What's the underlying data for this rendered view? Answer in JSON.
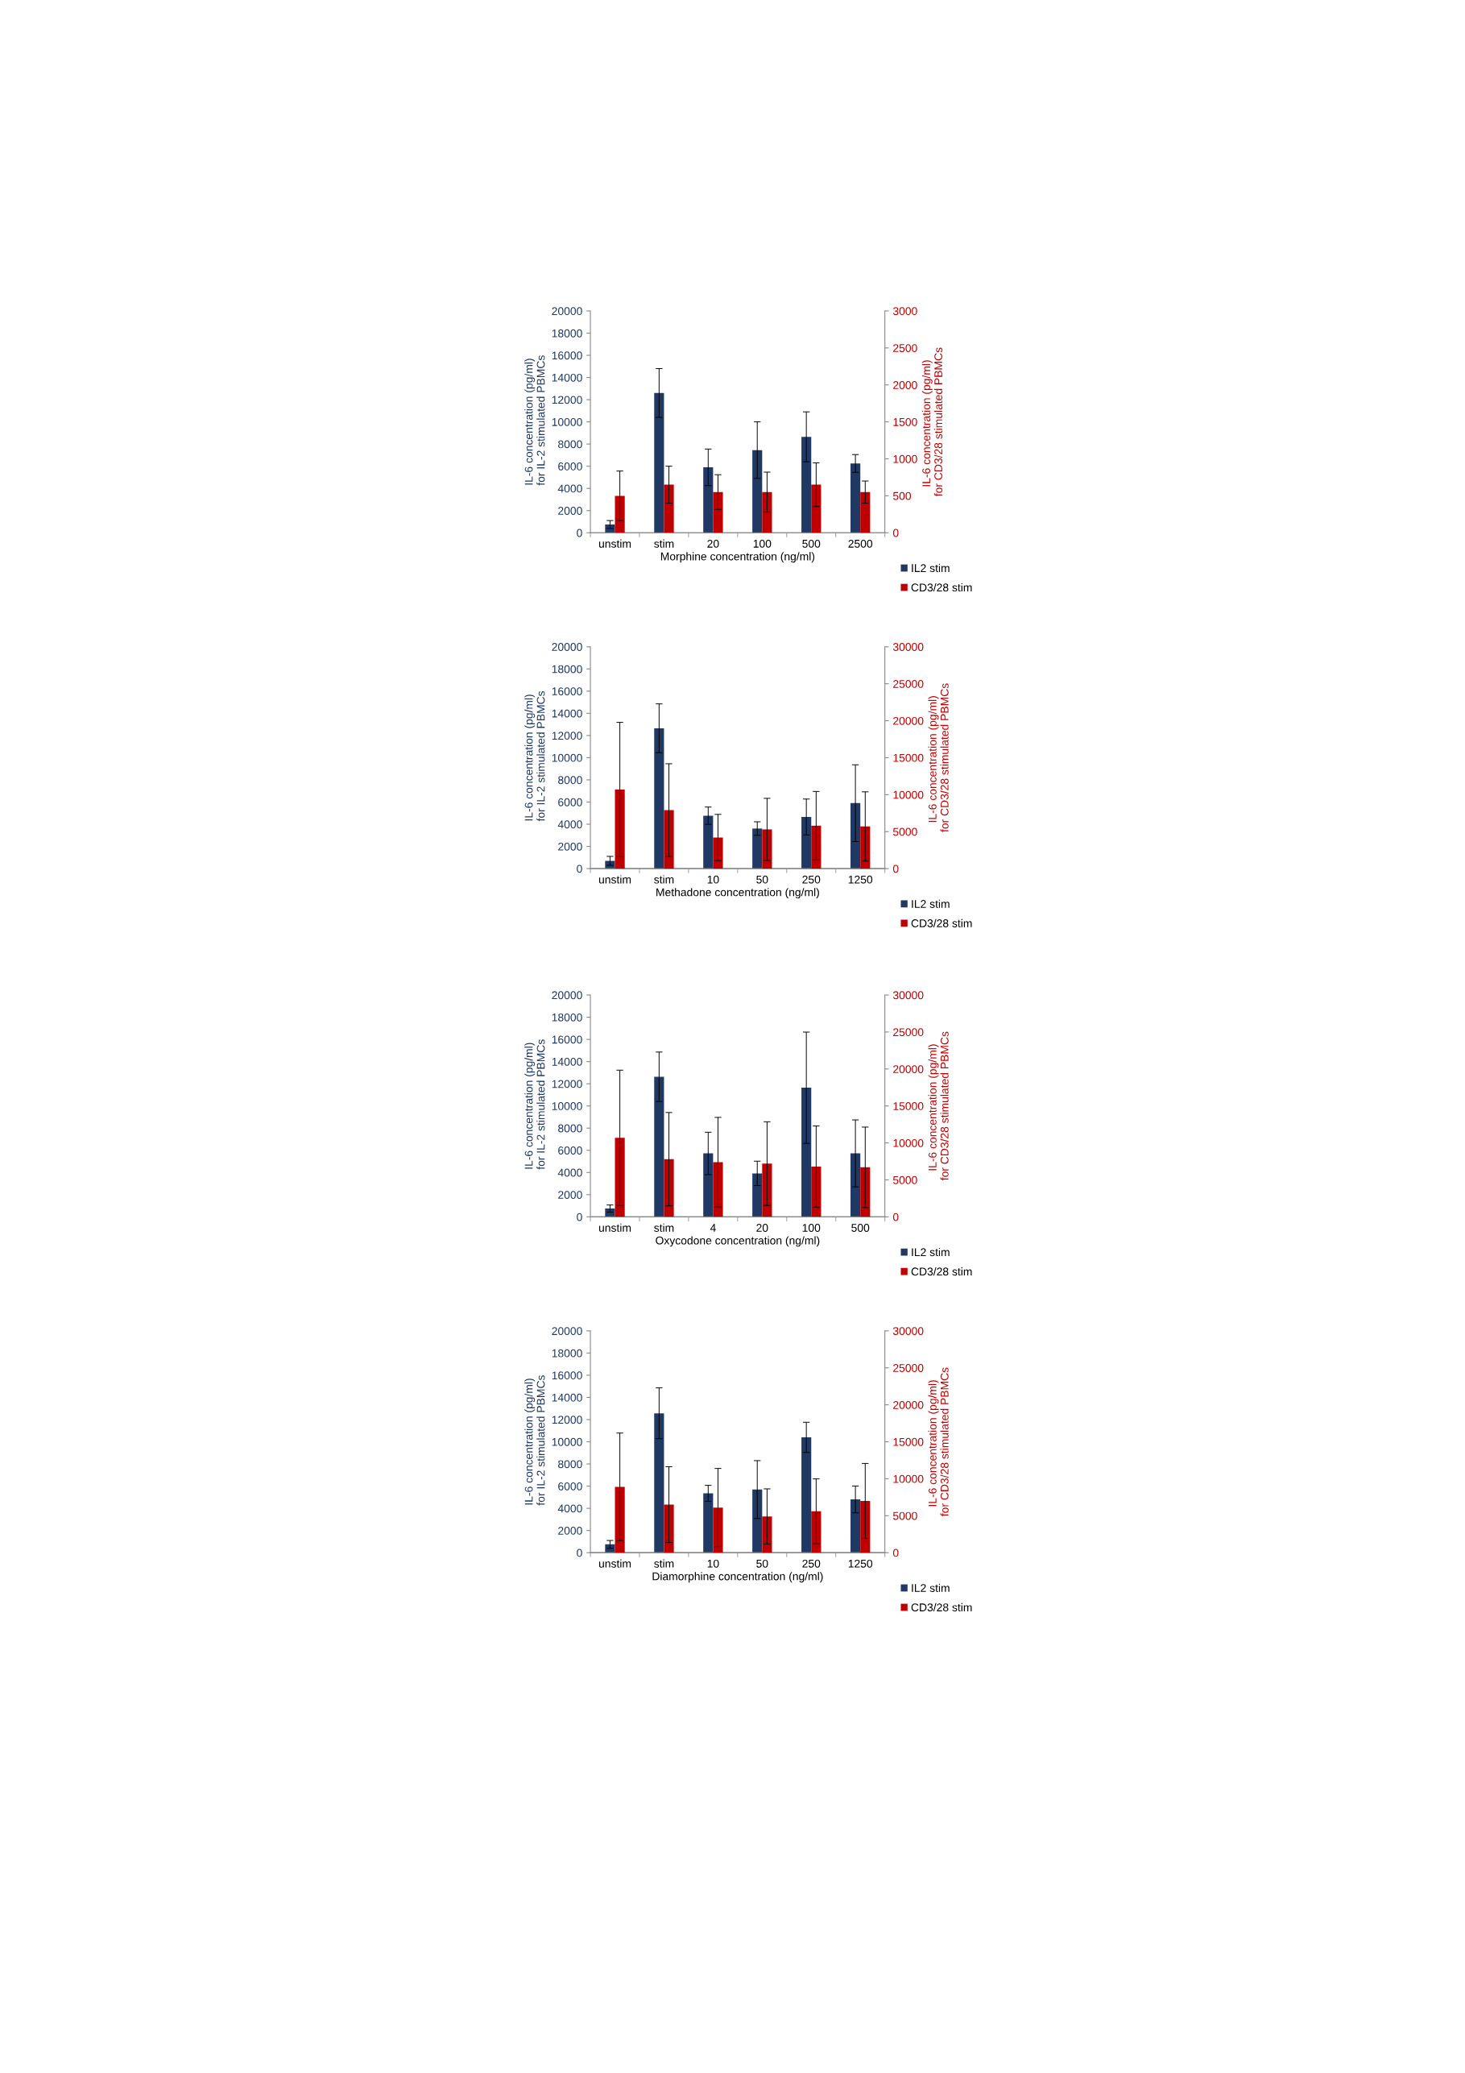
{
  "chart_data": [
    {
      "type": "bar",
      "categories": [
        "unstim",
        "stim",
        "20",
        "100",
        "500",
        "2500"
      ],
      "xlabel": "Morphine concentration (ng/ml)",
      "ylabel": "IL-6 concentration (pg/ml)  for IL-2 stimulated PBMCs",
      "y2label": "IL-6 concentration (pg/ml)  for CD3/28 stimulated PBMCs",
      "ylim": [
        0,
        20000
      ],
      "yticks": [
        0,
        2000,
        4000,
        6000,
        8000,
        10000,
        12000,
        14000,
        16000,
        18000,
        20000
      ],
      "y2lim": [
        0,
        3000
      ],
      "y2ticks": [
        0,
        500,
        1000,
        1500,
        2000,
        2500,
        3000
      ],
      "grid": false,
      "legend": "bottom right",
      "series": [
        {
          "name": "IL2 stim",
          "color": "#1f3864",
          "values": [
            750,
            12600,
            5900,
            7450,
            8650,
            6250
          ],
          "errors": [
            350,
            2200,
            1650,
            2550,
            2250,
            800
          ]
        },
        {
          "name": "CD3/28 stim",
          "color": "#c00000",
          "axis": "y2",
          "values": [
            500,
            650,
            550,
            550,
            650,
            550
          ],
          "errors": [
            335,
            250,
            235,
            270,
            295,
            150
          ]
        }
      ]
    },
    {
      "type": "bar",
      "categories": [
        "unstim",
        "stim",
        "10",
        "50",
        "250",
        "1250"
      ],
      "xlabel": "Methadone concentration (ng/ml)",
      "ylabel": "IL-6 concentration (pg/ml)  for IL-2 stimulated PBMCs",
      "y2label": "IL-6 concentration (pg/ml)  for CD3/28 stimulated PBMCs",
      "ylim": [
        0,
        20000
      ],
      "yticks": [
        0,
        2000,
        4000,
        6000,
        8000,
        10000,
        12000,
        14000,
        16000,
        18000,
        20000
      ],
      "y2lim": [
        0,
        30000
      ],
      "y2ticks": [
        0,
        5000,
        10000,
        15000,
        20000,
        25000,
        30000
      ],
      "grid": false,
      "legend": "bottom right",
      "series": [
        {
          "name": "IL2 stim",
          "color": "#1f3864",
          "values": [
            700,
            12650,
            4770,
            3610,
            4650,
            5900
          ],
          "errors": [
            400,
            2200,
            780,
            610,
            1620,
            3460
          ]
        },
        {
          "name": "CD3/28 stim",
          "color": "#c00000",
          "axis": "y2",
          "values": [
            10700,
            7900,
            4200,
            5300,
            5800,
            5700
          ],
          "errors": [
            9080,
            6280,
            3130,
            4200,
            4630,
            4680
          ]
        }
      ]
    },
    {
      "type": "bar",
      "categories": [
        "unstim",
        "stim",
        "4",
        "20",
        "100",
        "500"
      ],
      "xlabel": "Oxycodone concentration (ng/ml)",
      "ylabel": "IL-6 concentration (pg/ml)  for IL-2 stimulated PBMCs",
      "y2label": "IL-6 concentration (pg/ml)  for CD3/28 stimulated PBMCs",
      "ylim": [
        0,
        20000
      ],
      "yticks": [
        0,
        2000,
        4000,
        6000,
        8000,
        10000,
        12000,
        14000,
        16000,
        18000,
        20000
      ],
      "y2lim": [
        0,
        30000
      ],
      "y2ticks": [
        0,
        5000,
        10000,
        15000,
        20000,
        25000,
        30000
      ],
      "grid": false,
      "legend": "bottom right",
      "series": [
        {
          "name": "IL2 stim",
          "color": "#1f3864",
          "values": [
            750,
            12630,
            5720,
            3920,
            11640,
            5720
          ],
          "errors": [
            320,
            2230,
            1910,
            1100,
            5020,
            3020
          ]
        },
        {
          "name": "CD3/28 stim",
          "color": "#c00000",
          "axis": "y2",
          "values": [
            10700,
            7800,
            7400,
            7200,
            6800,
            6700
          ],
          "errors": [
            9140,
            6310,
            6050,
            5660,
            5490,
            5440
          ]
        }
      ]
    },
    {
      "type": "bar",
      "categories": [
        "unstim",
        "stim",
        "10",
        "50",
        "250",
        "1250"
      ],
      "xlabel": "Diamorphine concentration (ng/ml)",
      "ylabel": "IL-6 concentration (pg/ml)  for IL-2 stimulated PBMCs",
      "y2label": "IL-6 concentration (pg/ml)  for CD3/28 stimulated PBMCs",
      "ylim": [
        0,
        20000
      ],
      "yticks": [
        0,
        2000,
        4000,
        6000,
        8000,
        10000,
        12000,
        14000,
        16000,
        18000,
        20000
      ],
      "y2lim": [
        0,
        30000
      ],
      "y2ticks": [
        0,
        5000,
        10000,
        15000,
        20000,
        25000,
        30000
      ],
      "grid": false,
      "legend": "bottom right",
      "series": [
        {
          "name": "IL2 stim",
          "color": "#1f3864",
          "values": [
            750,
            12570,
            5350,
            5690,
            10400,
            4800
          ],
          "errors": [
            350,
            2290,
            720,
            2610,
            1360,
            1210
          ]
        },
        {
          "name": "CD3/28 stim",
          "color": "#c00000",
          "axis": "y2",
          "values": [
            8900,
            6500,
            6100,
            4900,
            5600,
            7000
          ],
          "errors": [
            7280,
            5120,
            5290,
            3730,
            4380,
            5070
          ]
        }
      ]
    }
  ]
}
